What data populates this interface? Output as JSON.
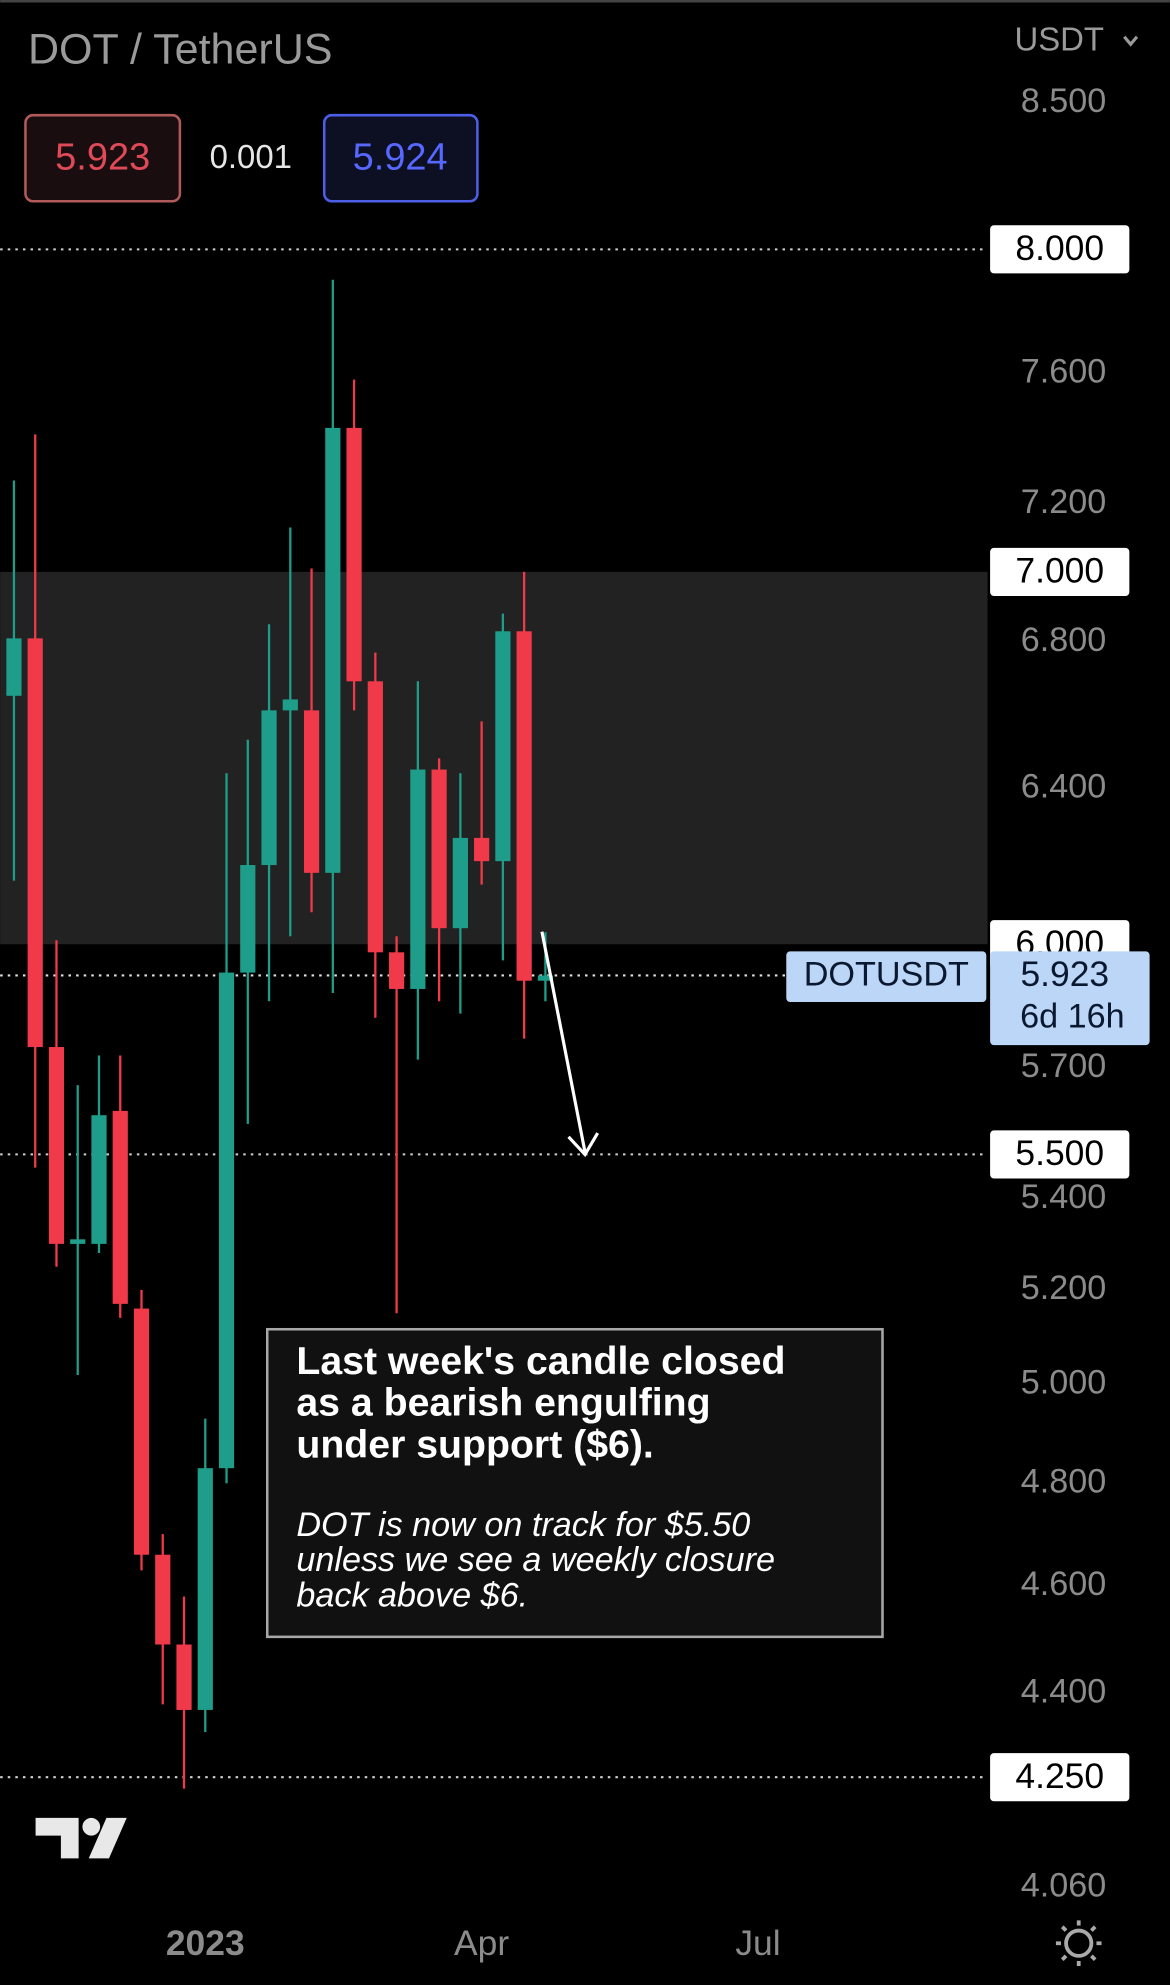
{
  "chart_data": {
    "type": "candlestick",
    "title": "DOT / TetherUS",
    "currency": "USDT",
    "bid": "5.923",
    "spread": "0.001",
    "ask": "5.924",
    "log_scale": true,
    "up_color": "#1e9e8a",
    "down_color": "#f03a4a",
    "categories": [
      null,
      null,
      null,
      null,
      null,
      null,
      null,
      null,
      null,
      null,
      null,
      null,
      null,
      null,
      null,
      null,
      null,
      null,
      null,
      null,
      null,
      null,
      null,
      null,
      null,
      null
    ],
    "open": [
      6.65,
      6.81,
      5.75,
      5.3,
      5.3,
      5.6,
      5.16,
      4.66,
      4.49,
      4.37,
      4.83,
      5.93,
      6.2,
      6.61,
      6.61,
      6.18,
      7.43,
      6.69,
      5.98,
      5.89,
      6.45,
      6.04,
      6.27,
      6.21,
      6.83,
      5.91
    ],
    "high": [
      7.27,
      7.41,
      6.01,
      5.66,
      5.73,
      5.73,
      5.2,
      4.7,
      4.58,
      4.93,
      6.44,
      6.53,
      6.85,
      7.13,
      7.01,
      7.9,
      7.58,
      6.77,
      6.02,
      6.69,
      6.48,
      6.44,
      6.58,
      6.88,
      7.0,
      6.03
    ],
    "low": [
      6.16,
      5.47,
      5.25,
      5.02,
      5.28,
      5.14,
      4.63,
      4.38,
      4.23,
      4.33,
      4.8,
      5.57,
      5.86,
      6.02,
      6.08,
      5.88,
      6.61,
      5.82,
      5.15,
      5.72,
      5.86,
      5.83,
      6.15,
      5.96,
      5.77,
      5.86
    ],
    "close": [
      6.81,
      5.75,
      5.3,
      5.31,
      5.59,
      5.17,
      4.66,
      4.49,
      4.37,
      4.83,
      5.93,
      6.2,
      6.61,
      6.64,
      6.18,
      7.43,
      6.69,
      5.98,
      5.89,
      6.45,
      6.04,
      6.27,
      6.21,
      6.83,
      5.91,
      5.923
    ],
    "xlim": [
      -0.65,
      45.8
    ],
    "xticks": [
      {
        "value": 9,
        "label": "2023"
      },
      {
        "value": 22,
        "label": "Apr"
      },
      {
        "value": 35,
        "label": "Jul"
      }
    ],
    "ylim": [
      4.02,
      8.87
    ],
    "yticks": [
      {
        "value": 8.5,
        "label": "8.500"
      },
      {
        "value": 7.6,
        "label": "7.600"
      },
      {
        "value": 7.2,
        "label": "7.200"
      },
      {
        "value": 6.8,
        "label": "6.800"
      },
      {
        "value": 6.4,
        "label": "6.400"
      },
      {
        "value": 5.7,
        "label": "5.700"
      },
      {
        "value": 5.4,
        "label": "5.400"
      },
      {
        "value": 5.2,
        "label": "5.200"
      },
      {
        "value": 5.0,
        "label": "5.000"
      },
      {
        "value": 4.8,
        "label": "4.800"
      },
      {
        "value": 4.6,
        "label": "4.600"
      },
      {
        "value": 4.4,
        "label": "4.400"
      },
      {
        "value": 4.06,
        "label": "4.060"
      }
    ],
    "levels": [
      {
        "value": 8,
        "label": "8.000",
        "line": true
      },
      {
        "value": 7,
        "label": "7.000",
        "line": false
      },
      {
        "value": 6,
        "label": "6.000",
        "line": false
      },
      {
        "value": 5.5,
        "label": "5.500",
        "line": true
      },
      {
        "value": 4.25,
        "label": "4.250",
        "line": true
      }
    ],
    "price": {
      "value": 5.923,
      "label": "5.923",
      "symbol": "DOTUSDT",
      "countdown": "6d 16h"
    },
    "annotation": {
      "headline": [
        "Last week's candle closed",
        "as a bearish engulfing",
        "under support ($6)."
      ],
      "body": [
        "DOT is now on track for $5.50",
        "unless we see a weekly closure",
        "back above $6."
      ]
    }
  }
}
